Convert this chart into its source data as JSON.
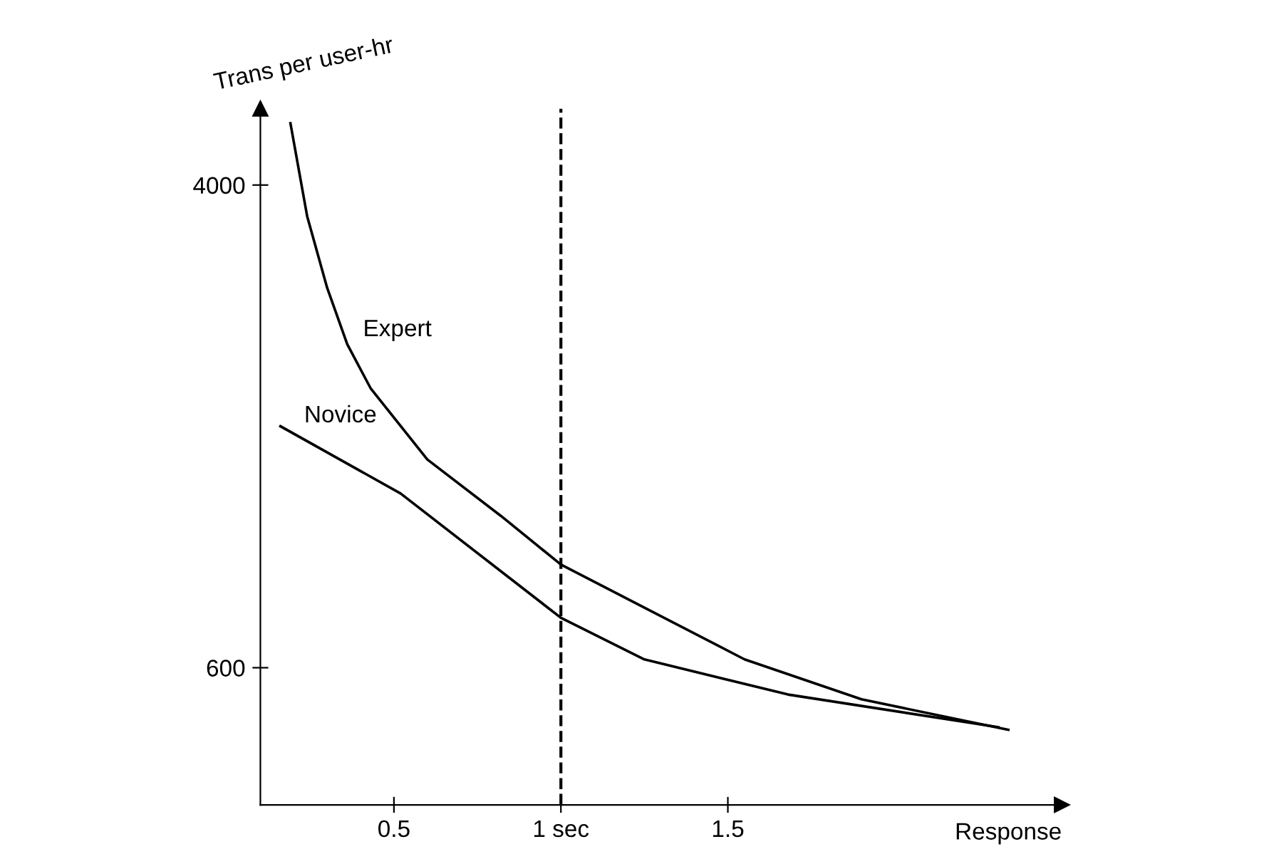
{
  "chart_data": {
    "type": "line",
    "xlabel": "Response",
    "ylabel": "Trans per user-hr",
    "log": "y",
    "xlim": [
      0.1,
      2.5
    ],
    "xticks": [
      0.5,
      {
        "value": 1,
        "label": "1 sec"
      },
      1.5
    ],
    "ylim": [
      350,
      5400
    ],
    "yticks": [
      600,
      4000
    ],
    "grid": false,
    "legend": false,
    "marker": "none",
    "line_style": "solid",
    "series": [
      {
        "name": "Expert",
        "color": "#000000",
        "x": [
          0.19,
          0.24,
          0.3,
          0.36,
          0.43,
          0.6,
          0.82,
          1.0,
          1.25,
          1.55,
          1.9,
          2.34
        ],
        "values": [
          5100,
          3540,
          2670,
          2140,
          1800,
          1360,
          1090,
          900,
          760,
          620,
          530,
          470
        ]
      },
      {
        "name": "Novice",
        "color": "#000000",
        "x": [
          0.16,
          0.52,
          1.0,
          1.25,
          1.68,
          2.31
        ],
        "values": [
          1550,
          1190,
          730,
          620,
          540,
          475
        ]
      }
    ],
    "ref_lines": [
      {
        "axis": "x",
        "value": 1,
        "line_style": "dashed",
        "color": "#000000"
      }
    ]
  }
}
